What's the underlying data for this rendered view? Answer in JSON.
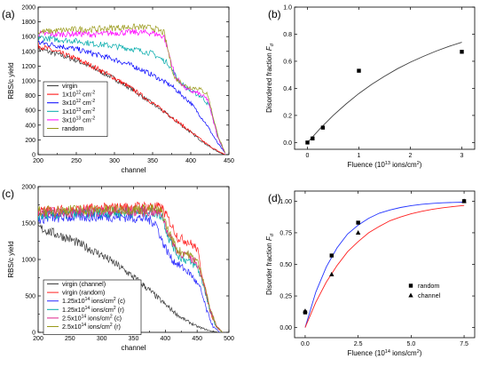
{
  "figure": {
    "background": "#ffffff"
  },
  "chart_data": [
    {
      "panel_label": "(a)",
      "type": "line",
      "xlabel": "channel",
      "ylabel": "RBS/c yield",
      "xlim": [
        200,
        450
      ],
      "ylim": [
        0,
        2000
      ],
      "xticks": [
        "200",
        "250",
        "300",
        "350",
        "400",
        "450"
      ],
      "yticks": [
        "0",
        "200",
        "400",
        "600",
        "800",
        "1000",
        "1200",
        "1400",
        "1600",
        "1800",
        "2000"
      ],
      "legend": "bottom-left",
      "noise": 40,
      "series": [
        {
          "name": "virgin",
          "color": "#3c3c3c",
          "sup": "",
          "after": "",
          "x": [
            200,
            225,
            250,
            275,
            300,
            325,
            350,
            375,
            400,
            420,
            435,
            445
          ],
          "y": [
            1440,
            1360,
            1280,
            1160,
            1030,
            870,
            690,
            500,
            300,
            140,
            40,
            0
          ]
        },
        {
          "name": "1x10",
          "color": "#ff0000",
          "sup": "12",
          "after": " cm",
          "sup2": "-2",
          "x": [
            200,
            225,
            250,
            275,
            300,
            325,
            350,
            375,
            400,
            420,
            435,
            445
          ],
          "y": [
            1480,
            1390,
            1300,
            1180,
            1040,
            880,
            700,
            510,
            310,
            150,
            50,
            0
          ]
        },
        {
          "name": "3x10",
          "color": "#0000ff",
          "sup": "12",
          "after": " cm",
          "sup2": "-2",
          "x": [
            200,
            225,
            250,
            275,
            300,
            325,
            350,
            375,
            400,
            420,
            435,
            445
          ],
          "y": [
            1520,
            1480,
            1430,
            1360,
            1290,
            1200,
            1080,
            930,
            700,
            420,
            160,
            20
          ]
        },
        {
          "name": "1x10",
          "color": "#00aaaa",
          "sup": "13",
          "after": " cm",
          "sup2": "-2",
          "x": [
            200,
            225,
            250,
            275,
            300,
            325,
            350,
            370,
            385,
            400,
            415,
            425,
            437,
            445
          ],
          "y": [
            1590,
            1560,
            1540,
            1500,
            1470,
            1430,
            1370,
            1240,
            990,
            860,
            780,
            650,
            200,
            20
          ]
        },
        {
          "name": "3x10",
          "color": "#ff00ff",
          "sup": "13",
          "after": " cm",
          "sup2": "-2",
          "x": [
            200,
            225,
            250,
            275,
            300,
            325,
            350,
            365,
            380,
            395,
            410,
            422,
            435,
            445
          ],
          "y": [
            1640,
            1630,
            1640,
            1630,
            1650,
            1660,
            1650,
            1600,
            1050,
            880,
            830,
            750,
            250,
            20
          ]
        },
        {
          "name": "random",
          "color": "#9a9a1a",
          "sup": "",
          "after": "",
          "x": [
            200,
            225,
            250,
            275,
            300,
            325,
            350,
            365,
            378,
            395,
            410,
            422,
            435,
            445
          ],
          "y": [
            1660,
            1680,
            1700,
            1700,
            1720,
            1730,
            1720,
            1650,
            1050,
            920,
            900,
            820,
            280,
            20
          ]
        }
      ]
    },
    {
      "panel_label": "(b)",
      "type": "scatter",
      "xlabel_pre": "Fluence (10",
      "xlabel_sup": "13",
      "xlabel_post": " ions/cm",
      "xlabel_sup2": "2",
      "xlabel_end": ")",
      "ylabel_pre": "Disordered fraction ",
      "ylabel_f": "F",
      "ylabel_sub": "d",
      "xlim": [
        -0.25,
        3.25
      ],
      "ylim": [
        -0.05,
        1.0
      ],
      "xticks": [
        0,
        1,
        2,
        3
      ],
      "xtick_labels": [
        "0",
        "1",
        "2",
        "3"
      ],
      "yticks": [
        0.0,
        0.2,
        0.4,
        0.6,
        0.8,
        1.0
      ],
      "ytick_labels": [
        "0.0",
        "0.2",
        "0.4",
        "0.6",
        "0.8",
        "1.0"
      ],
      "points": {
        "x": [
          0,
          0.1,
          0.3,
          1.0,
          3.0
        ],
        "y": [
          0.0,
          0.03,
          0.11,
          0.53,
          0.67
        ],
        "marker": "square",
        "color": "#000000"
      },
      "fit": {
        "color": "#404040",
        "x": [
          0,
          0.25,
          0.5,
          0.75,
          1.0,
          1.25,
          1.5,
          1.75,
          2.0,
          2.25,
          2.5,
          2.75,
          3.0
        ],
        "y": [
          0.0,
          0.105,
          0.2,
          0.285,
          0.362,
          0.43,
          0.49,
          0.545,
          0.593,
          0.636,
          0.675,
          0.71,
          0.74
        ]
      }
    },
    {
      "panel_label": "(c)",
      "type": "line",
      "xlabel": "channel",
      "ylabel": "RBS/c yield",
      "xlim": [
        200,
        500
      ],
      "ylim": [
        0,
        2000
      ],
      "xticks": [
        "200",
        "250",
        "300",
        "350",
        "400",
        "450",
        "500"
      ],
      "yticks": [
        "0",
        "500",
        "1000",
        "1500",
        "2000"
      ],
      "minor_yticks": true,
      "legend": "bottom-left",
      "noise": 70,
      "series": [
        {
          "name": "virgin (channel)",
          "color": "#3c3c3c",
          "sup": "",
          "after": "",
          "x": [
            200,
            225,
            250,
            275,
            300,
            325,
            350,
            375,
            400,
            425,
            450,
            470,
            485
          ],
          "y": [
            1440,
            1360,
            1280,
            1170,
            1060,
            920,
            760,
            580,
            380,
            200,
            80,
            20,
            0
          ]
        },
        {
          "name": "virgin (random)",
          "color": "#ff2020",
          "sup": "",
          "after": "",
          "x": [
            200,
            250,
            300,
            350,
            380,
            395,
            405,
            420,
            435,
            450,
            460,
            470,
            480,
            490
          ],
          "y": [
            1660,
            1680,
            1700,
            1720,
            1730,
            1700,
            1550,
            1300,
            1250,
            1150,
            700,
            300,
            80,
            0
          ]
        },
        {
          "name": "1.25x10",
          "color": "#2a2aff",
          "sup": "14",
          "after": " ions/cm",
          "sup2": "2",
          "tail": " (c)",
          "x": [
            200,
            250,
            300,
            340,
            370,
            385,
            395,
            410,
            425,
            440,
            455,
            465,
            475,
            485
          ],
          "y": [
            1560,
            1580,
            1590,
            1580,
            1560,
            1500,
            1250,
            1000,
            900,
            800,
            600,
            300,
            80,
            0
          ]
        },
        {
          "name": "1.25x10",
          "color": "#00aaaa",
          "sup": "14",
          "after": " ions/cm",
          "sup2": "2",
          "tail": " (r)",
          "x": [
            200,
            250,
            300,
            350,
            380,
            395,
            405,
            420,
            435,
            450,
            460,
            470,
            480,
            490
          ],
          "y": [
            1600,
            1620,
            1640,
            1650,
            1650,
            1600,
            1300,
            1050,
            980,
            900,
            650,
            300,
            80,
            0
          ]
        },
        {
          "name": "2.5x10",
          "color": "#dd2288",
          "sup": "14",
          "after": " ions/cm",
          "sup2": "2",
          "tail": " (c)",
          "x": [
            200,
            250,
            300,
            350,
            380,
            395,
            405,
            420,
            435,
            450,
            460,
            470,
            480,
            490
          ],
          "y": [
            1640,
            1650,
            1660,
            1660,
            1660,
            1620,
            1350,
            1100,
            1050,
            950,
            700,
            320,
            90,
            0
          ]
        },
        {
          "name": "2.5x10",
          "color": "#9a9a1a",
          "sup": "14",
          "after": " ions/cm",
          "sup2": "2",
          "tail": " (r)",
          "x": [
            200,
            250,
            300,
            350,
            380,
            395,
            405,
            420,
            435,
            450,
            460,
            470,
            480,
            490
          ],
          "y": [
            1660,
            1680,
            1680,
            1690,
            1690,
            1650,
            1380,
            1120,
            1080,
            980,
            720,
            330,
            90,
            0
          ]
        }
      ]
    },
    {
      "panel_label": "(d)",
      "type": "scatter",
      "xlabel_pre": "Fluence (10",
      "xlabel_sup": "14",
      "xlabel_post": " ions/cm",
      "xlabel_sup2": "2",
      "xlabel_end": ")",
      "ylabel_pre": "Disorder fraction ",
      "ylabel_f": "F",
      "ylabel_sub": "d",
      "xlim": [
        -0.5,
        8.0
      ],
      "ylim": [
        -0.08,
        1.08
      ],
      "xticks": [
        0.0,
        2.5,
        5.0,
        7.5
      ],
      "xtick_labels": [
        "0.0",
        "2.5",
        "5.0",
        "7.5"
      ],
      "yticks": [
        0.0,
        0.25,
        0.5,
        0.75,
        1.0
      ],
      "ytick_labels": [
        "0.00",
        "0.25",
        "0.50",
        "0.75",
        "1.00"
      ],
      "legend": "lower-right",
      "series": [
        {
          "name": "random",
          "marker": "square",
          "color": "#000000",
          "x": [
            0,
            1.25,
            2.5,
            7.5
          ],
          "y": [
            0.12,
            0.57,
            0.83,
            1.0
          ],
          "fit_color": "#2233ff",
          "fit_x": [
            0,
            0.5,
            1.0,
            1.5,
            2.0,
            2.5,
            3.0,
            3.5,
            4.0,
            4.5,
            5.0,
            5.5,
            6.0,
            6.5,
            7.0,
            7.5
          ],
          "fit_y": [
            0.0,
            0.28,
            0.48,
            0.63,
            0.74,
            0.81,
            0.865,
            0.905,
            0.93,
            0.95,
            0.965,
            0.975,
            0.982,
            0.987,
            0.99,
            0.992
          ]
        },
        {
          "name": "channel",
          "marker": "triangle",
          "color": "#000000",
          "x": [
            0,
            1.25,
            2.5,
            7.5
          ],
          "y": [
            0.13,
            0.42,
            0.75,
            1.0
          ],
          "fit_color": "#ff2020",
          "fit_x": [
            0,
            0.5,
            1.0,
            1.5,
            2.0,
            2.5,
            3.0,
            3.5,
            4.0,
            4.5,
            5.0,
            5.5,
            6.0,
            6.5,
            7.0,
            7.5
          ],
          "fit_y": [
            0.0,
            0.2,
            0.36,
            0.49,
            0.6,
            0.68,
            0.75,
            0.8,
            0.845,
            0.875,
            0.9,
            0.92,
            0.935,
            0.948,
            0.958,
            0.966
          ]
        }
      ]
    }
  ]
}
